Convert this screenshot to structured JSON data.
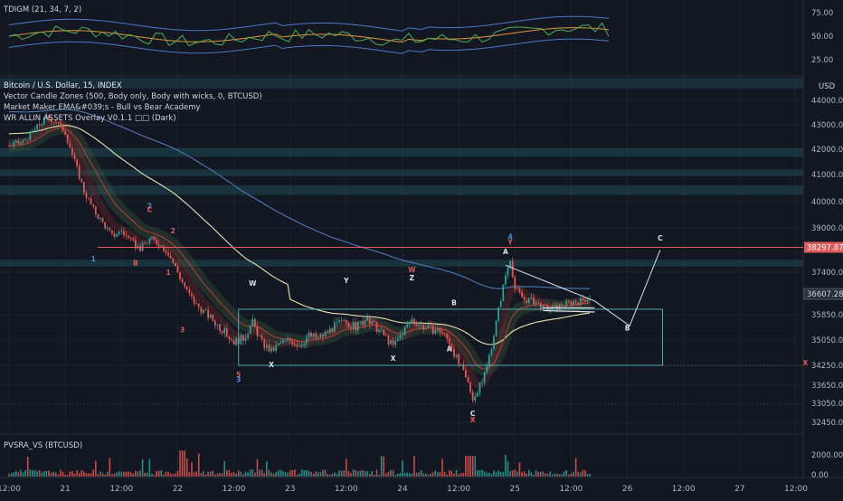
{
  "indicator": {
    "label": "TDIGM (21, 34, 7, 2)",
    "ticks": [
      "75.00",
      "50.00",
      "25.00"
    ]
  },
  "main": {
    "title": "Bitcoin / U.S. Dollar, 15, INDEX",
    "legend": [
      "Vector Candle Zones (500, Body only, Body with wicks, 0, BTCUSD)",
      "Market Maker EMA&#039;s - Bull vs Bear Academy",
      "WR ALLIN ASSETS Overlay V0.1.1 □□ (Dark)"
    ],
    "currency": "USD",
    "price_tag": "38297.87",
    "current_tag": "36607.28",
    "price_ticks": [
      {
        "label": "44000.00",
        "value": 44000
      },
      {
        "label": "43000.00",
        "value": 43000
      },
      {
        "label": "42000.00",
        "value": 42000
      },
      {
        "label": "41000.00",
        "value": 41000
      },
      {
        "label": "40000.00",
        "value": 40000
      },
      {
        "label": "39000.00",
        "value": 39000
      },
      {
        "label": "37400.00",
        "value": 37400
      },
      {
        "label": "35850.00",
        "value": 35850
      },
      {
        "label": "35050.00",
        "value": 35050
      },
      {
        "label": "34250.00",
        "value": 34250
      },
      {
        "label": "33650.00",
        "value": 33650
      },
      {
        "label": "33050.00",
        "value": 33050
      },
      {
        "label": "32450.00",
        "value": 32450
      }
    ]
  },
  "volume": {
    "label": "PVSRA_VS (BTCUSD)",
    "ticks": [
      "2000.00",
      "0.00"
    ]
  },
  "time_axis": [
    {
      "label": "12:00",
      "t": 0
    },
    {
      "label": "21",
      "t": 12
    },
    {
      "label": "12:00",
      "t": 24
    },
    {
      "label": "22",
      "t": 36
    },
    {
      "label": "12:00",
      "t": 48
    },
    {
      "label": "23",
      "t": 60
    },
    {
      "label": "12:00",
      "t": 72
    },
    {
      "label": "24",
      "t": 84
    },
    {
      "label": "12:00",
      "t": 96
    },
    {
      "label": "25",
      "t": 108
    },
    {
      "label": "12:00",
      "t": 120
    },
    {
      "label": "26",
      "t": 132
    },
    {
      "label": "12:00",
      "t": 144
    },
    {
      "label": "27",
      "t": 156
    },
    {
      "label": "12:00",
      "t": 168
    }
  ],
  "annotations": [
    {
      "text": "1",
      "t": 18,
      "price": 37800,
      "color": "#4a90d9"
    },
    {
      "text": "B",
      "t": 27,
      "price": 37650,
      "color": "#e05a5a"
    },
    {
      "text": "2",
      "t": 30,
      "price": 39750,
      "color": "#4a90d9"
    },
    {
      "text": "C",
      "t": 30,
      "price": 39600,
      "color": "#e05a5a"
    },
    {
      "text": "2",
      "t": 35,
      "price": 38800,
      "color": "#e05a5a"
    },
    {
      "text": "1",
      "t": 34,
      "price": 37300,
      "color": "#e05a5a"
    },
    {
      "text": "3",
      "t": 37,
      "price": 35300,
      "color": "#e05a5a"
    },
    {
      "text": "W",
      "t": 52,
      "price": 36900,
      "color": "#e0e3eb"
    },
    {
      "text": "Y",
      "t": 72,
      "price": 37000,
      "color": "#e0e3eb"
    },
    {
      "text": "W",
      "t": 86,
      "price": 37400,
      "color": "#e05a5a"
    },
    {
      "text": "Z",
      "t": 86,
      "price": 37100,
      "color": "#e0e3eb"
    },
    {
      "text": "B",
      "t": 95,
      "price": 36200,
      "color": "#e0e3eb"
    },
    {
      "text": "A",
      "t": 94,
      "price": 34700,
      "color": "#e0e3eb"
    },
    {
      "text": "X",
      "t": 56,
      "price": 34200,
      "color": "#e0e3eb"
    },
    {
      "text": "X",
      "t": 82,
      "price": 34400,
      "color": "#e0e3eb"
    },
    {
      "text": "5",
      "t": 49,
      "price": 33900,
      "color": "#e05a5a"
    },
    {
      "text": "3",
      "t": 49,
      "price": 33750,
      "color": "#4a90d9"
    },
    {
      "text": "C",
      "t": 99,
      "price": 32650,
      "color": "#e0e3eb"
    },
    {
      "text": "X",
      "t": 99,
      "price": 32450,
      "color": "#e05a5a"
    },
    {
      "text": "4",
      "t": 107,
      "price": 38600,
      "color": "#4a90d9"
    },
    {
      "text": "Y",
      "t": 107,
      "price": 38400,
      "color": "#e05a5a"
    },
    {
      "text": "A",
      "t": 106,
      "price": 38050,
      "color": "#e0e3eb"
    },
    {
      "text": "B",
      "t": 132,
      "price": 35350,
      "color": "#e0e3eb"
    },
    {
      "text": "C",
      "t": 139,
      "price": 38550,
      "color": "#e0e3eb"
    },
    {
      "text": "X",
      "t": 170,
      "price": 34250,
      "color": "#e05a5a"
    }
  ],
  "colors": {
    "background": "#131722",
    "grid": "#1e222d",
    "up": "#26a69a",
    "down": "#ef5350",
    "resistance": "#e05a5a",
    "ema_slow": "#4f79b5",
    "ema_mid": "#e8e0b0",
    "box": "#56b8c0"
  }
}
